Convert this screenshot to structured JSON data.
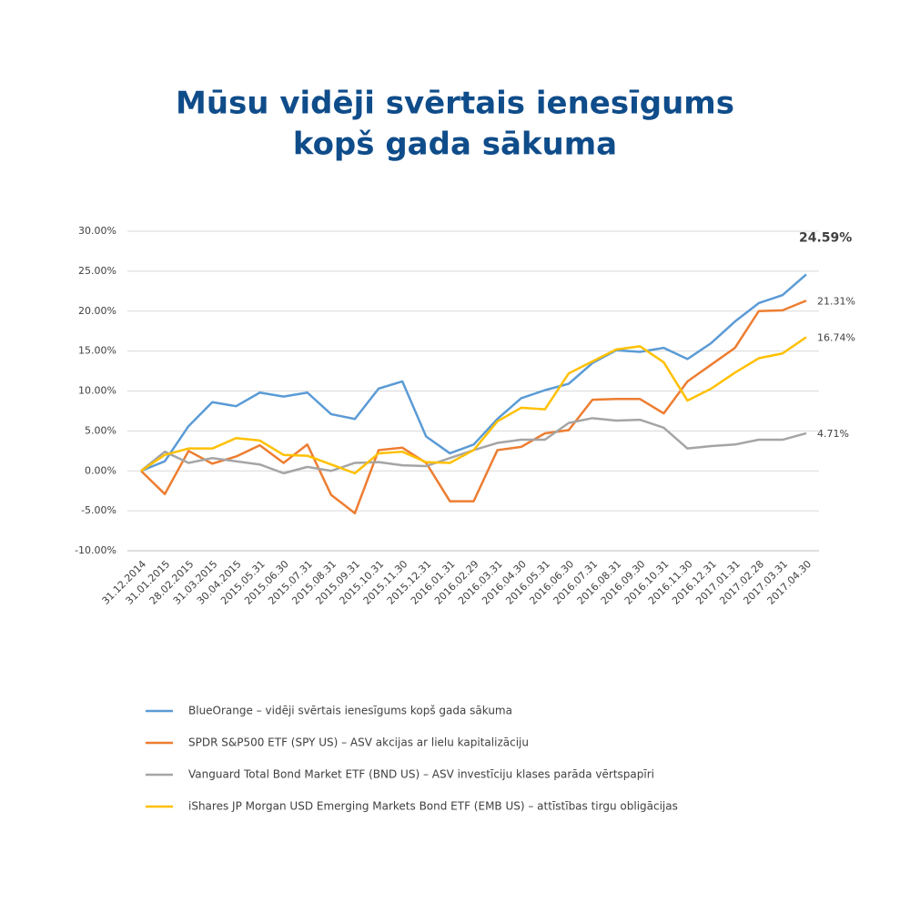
{
  "chart_data": {
    "type": "line",
    "title": [
      "Mūsu vidēji svērtais ienesīgums",
      "kopš gada sākuma"
    ],
    "categories": [
      "31.12.2014",
      "31.01.2015",
      "28.02.2015",
      "31.03.2015",
      "30.04.2015",
      "2015.05.31",
      "2015.06.30",
      "2015.07.31",
      "2015.08.31",
      "2015.09.31",
      "2015.10.31",
      "2015.11.30",
      "2015.12.31",
      "2016.01.31",
      "2016.02.29",
      "2016.03.31",
      "2016.04.30",
      "2016.05.31",
      "2016.06.30",
      "2016.07.31",
      "2016.08.31",
      "2016.09.30",
      "2016.10.31",
      "2016.11.30",
      "2016.12.31",
      "2017.01.31",
      "2017.02.28",
      "2017.03.31",
      "2017.04.30"
    ],
    "series": [
      {
        "name": "BlueOrange – vidēji svērtais ienesīgums kopš gada sākuma",
        "color": "#5b9bd5",
        "values": [
          0,
          1.2,
          5.6,
          8.6,
          8.1,
          9.8,
          9.3,
          9.8,
          7.1,
          6.5,
          10.3,
          11.2,
          4.3,
          2.2,
          3.3,
          6.5,
          9.1,
          10.1,
          10.9,
          13.5,
          15.1,
          14.9,
          15.4,
          14.0,
          16.0,
          18.7,
          21.0,
          22.0,
          24.59
        ],
        "value_labels": [
          null,
          null,
          null,
          null,
          null,
          null,
          null,
          null,
          null,
          null,
          null,
          null,
          null,
          null,
          null,
          null,
          null,
          null,
          null,
          null,
          null,
          null,
          null,
          null,
          null,
          null,
          null,
          null,
          "24.59%"
        ]
      },
      {
        "name": "SPDR S&P500 ETF (SPY US) – ASV akcijas ar lielu kapitalizāciju",
        "color": "#ed7d31",
        "values": [
          0,
          -2.9,
          2.5,
          0.9,
          1.8,
          3.2,
          1.0,
          3.3,
          -3.0,
          -5.3,
          2.6,
          2.9,
          1.0,
          -3.8,
          -3.8,
          2.6,
          3.0,
          4.7,
          5.1,
          8.9,
          9.0,
          9.0,
          7.2,
          11.2,
          13.3,
          15.4,
          20.0,
          20.1,
          21.31
        ],
        "value_labels": [
          null,
          null,
          null,
          null,
          null,
          null,
          null,
          null,
          null,
          null,
          null,
          null,
          null,
          null,
          null,
          null,
          null,
          null,
          null,
          null,
          null,
          null,
          null,
          null,
          null,
          null,
          null,
          null,
          "21.31%"
        ]
      },
      {
        "name": "Vanguard Total Bond Market ETF (BND US) – ASV investīciju klases parāda vērtspapīri",
        "color": "#a5a5a5",
        "values": [
          0,
          2.4,
          1.0,
          1.6,
          1.2,
          0.8,
          -0.3,
          0.5,
          0.0,
          1.0,
          1.1,
          0.7,
          0.6,
          1.6,
          2.6,
          3.5,
          3.9,
          3.9,
          6.0,
          6.6,
          6.3,
          6.4,
          5.4,
          2.8,
          3.1,
          3.3,
          3.9,
          3.9,
          4.71
        ],
        "value_labels": [
          null,
          null,
          null,
          null,
          null,
          null,
          null,
          null,
          null,
          null,
          null,
          null,
          null,
          null,
          null,
          null,
          null,
          null,
          null,
          null,
          null,
          null,
          null,
          null,
          null,
          null,
          null,
          null,
          "4.71%"
        ]
      },
      {
        "name": "iShares JP Morgan USD Emerging Markets Bond ETF (EMB US) – attīstības tirgu obligācijas",
        "color": "#ffc000",
        "values": [
          0,
          2.0,
          2.8,
          2.8,
          4.1,
          3.8,
          2.0,
          1.9,
          0.8,
          -0.3,
          2.2,
          2.4,
          1.1,
          1.0,
          2.6,
          6.2,
          7.9,
          7.7,
          12.2,
          13.7,
          15.2,
          15.6,
          13.6,
          8.8,
          10.3,
          12.3,
          14.1,
          14.7,
          16.74
        ],
        "value_labels": [
          null,
          null,
          null,
          null,
          null,
          null,
          null,
          null,
          null,
          null,
          null,
          null,
          null,
          null,
          null,
          null,
          null,
          null,
          null,
          null,
          null,
          null,
          null,
          null,
          null,
          null,
          null,
          null,
          "16.74%"
        ]
      }
    ],
    "ylim": [
      -10,
      30
    ],
    "yticks": [
      {
        "value": -10,
        "label": "-10.00%"
      },
      {
        "value": -5,
        "label": "-5.00%"
      },
      {
        "value": 0,
        "label": "0.00%"
      },
      {
        "value": 5,
        "label": "5.00%"
      },
      {
        "value": 10,
        "label": "10.00%"
      },
      {
        "value": 15,
        "label": "15.00%"
      },
      {
        "value": 20,
        "label": "20.00%"
      },
      {
        "value": 25,
        "label": "25.00%"
      },
      {
        "value": 30,
        "label": "30.00%"
      }
    ],
    "grid": true
  }
}
